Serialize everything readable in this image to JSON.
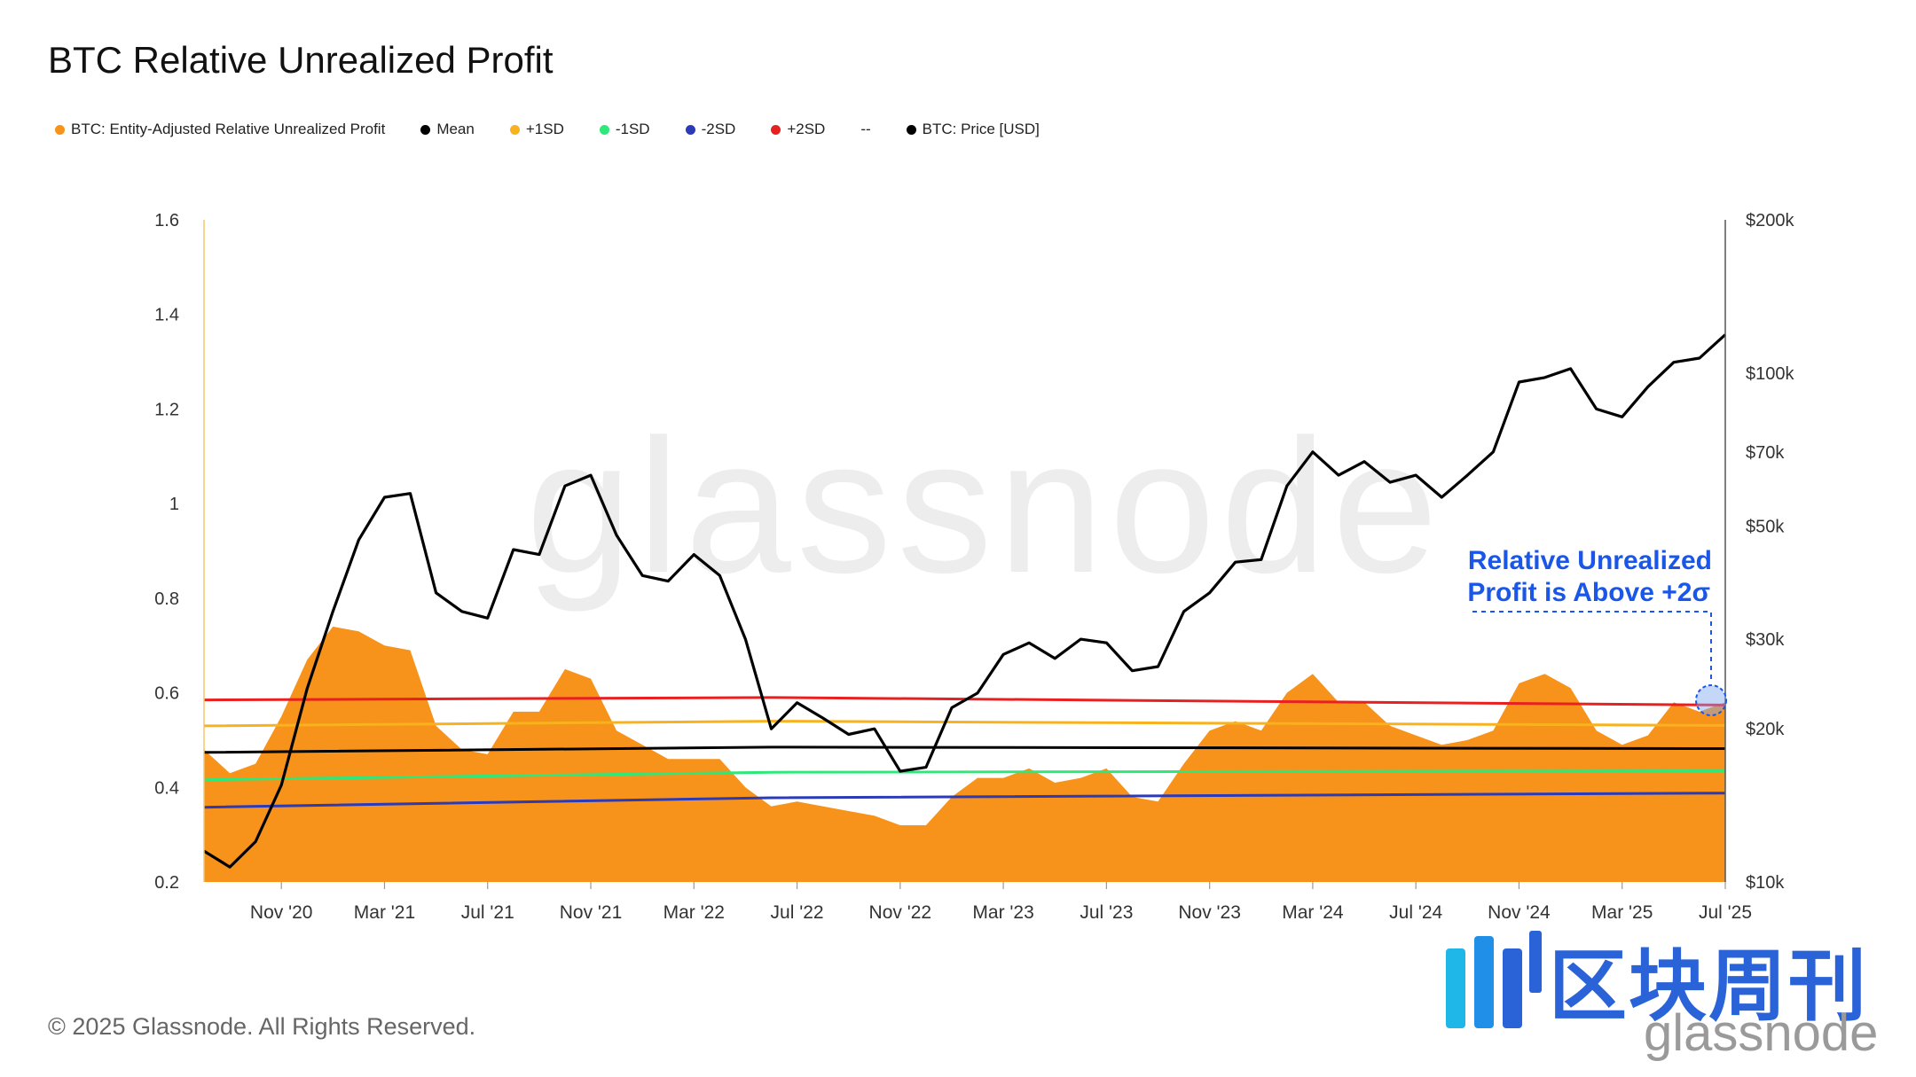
{
  "title": "BTC Relative Unrealized Profit",
  "legend": [
    {
      "label": "BTC: Entity-Adjusted Relative Unrealized Profit",
      "color": "#f7931a"
    },
    {
      "label": "Mean",
      "color": "#000000"
    },
    {
      "label": "+1SD",
      "color": "#f7b21e"
    },
    {
      "label": "-1SD",
      "color": "#2ee87a"
    },
    {
      "label": "-2SD",
      "color": "#2b3ab8"
    },
    {
      "label": "+2SD",
      "color": "#e82020"
    },
    {
      "label": "--",
      "color": ""
    },
    {
      "label": "BTC: Price [USD]",
      "color": "#000000"
    }
  ],
  "annotation": {
    "line1": "Relative Unrealized",
    "line2": "Profit is Above +2σ",
    "color": "#1a56e8"
  },
  "footer": "© 2025 Glassnode. All Rights Reserved.",
  "watermark": "glassnode",
  "brand": {
    "cn": "区块周刊",
    "en": "glassnode"
  },
  "chart_data": {
    "type": "area",
    "x_ticks": [
      "Nov '20",
      "Mar '21",
      "Jul '21",
      "Nov '21",
      "Mar '22",
      "Jul '22",
      "Nov '22",
      "Mar '23",
      "Jul '23",
      "Nov '23",
      "Mar '24",
      "Jul '24",
      "Nov '24",
      "Mar '25",
      "Jul '25"
    ],
    "y_left": {
      "ticks": [
        "1.6",
        "1.4",
        "1.2",
        "1",
        "0.8",
        "0.6",
        "0.4",
        "0.2"
      ],
      "values": [
        1.6,
        1.4,
        1.2,
        1.0,
        0.8,
        0.6,
        0.4,
        0.2
      ],
      "range": [
        0.2,
        1.6
      ]
    },
    "y_right": {
      "scale": "log",
      "ticks": [
        "$200k",
        "$100k",
        "$70k",
        "$50k",
        "$30k",
        "$20k",
        "$10k"
      ],
      "values": [
        200000,
        100000,
        70000,
        50000,
        30000,
        20000,
        10000
      ],
      "range": [
        10000,
        200000
      ]
    },
    "x_range": [
      "2020-08",
      "2025-07"
    ],
    "grid": false,
    "legend_position": "top-left",
    "series": [
      {
        "name": "BTC: Entity-Adjusted Relative Unrealized Profit",
        "kind": "area",
        "color": "#f7931a",
        "points": [
          [
            "2020-08",
            0.48
          ],
          [
            "2020-09",
            0.43
          ],
          [
            "2020-10",
            0.45
          ],
          [
            "2020-11",
            0.55
          ],
          [
            "2020-12",
            0.67
          ],
          [
            "2021-01",
            0.74
          ],
          [
            "2021-02",
            0.73
          ],
          [
            "2021-03",
            0.7
          ],
          [
            "2021-04",
            0.69
          ],
          [
            "2021-05",
            0.53
          ],
          [
            "2021-06",
            0.48
          ],
          [
            "2021-07",
            0.47
          ],
          [
            "2021-08",
            0.56
          ],
          [
            "2021-09",
            0.56
          ],
          [
            "2021-10",
            0.65
          ],
          [
            "2021-11",
            0.63
          ],
          [
            "2021-12",
            0.52
          ],
          [
            "2022-01",
            0.49
          ],
          [
            "2022-02",
            0.46
          ],
          [
            "2022-03",
            0.46
          ],
          [
            "2022-04",
            0.46
          ],
          [
            "2022-05",
            0.4
          ],
          [
            "2022-06",
            0.36
          ],
          [
            "2022-07",
            0.37
          ],
          [
            "2022-08",
            0.36
          ],
          [
            "2022-09",
            0.35
          ],
          [
            "2022-10",
            0.34
          ],
          [
            "2022-11",
            0.32
          ],
          [
            "2022-12",
            0.32
          ],
          [
            "2023-01",
            0.38
          ],
          [
            "2023-02",
            0.42
          ],
          [
            "2023-03",
            0.42
          ],
          [
            "2023-04",
            0.44
          ],
          [
            "2023-05",
            0.41
          ],
          [
            "2023-06",
            0.42
          ],
          [
            "2023-07",
            0.44
          ],
          [
            "2023-08",
            0.38
          ],
          [
            "2023-09",
            0.37
          ],
          [
            "2023-10",
            0.45
          ],
          [
            "2023-11",
            0.52
          ],
          [
            "2023-12",
            0.54
          ],
          [
            "2024-01",
            0.52
          ],
          [
            "2024-02",
            0.6
          ],
          [
            "2024-03",
            0.64
          ],
          [
            "2024-04",
            0.58
          ],
          [
            "2024-05",
            0.58
          ],
          [
            "2024-06",
            0.53
          ],
          [
            "2024-07",
            0.51
          ],
          [
            "2024-08",
            0.49
          ],
          [
            "2024-09",
            0.5
          ],
          [
            "2024-10",
            0.52
          ],
          [
            "2024-11",
            0.62
          ],
          [
            "2024-12",
            0.64
          ],
          [
            "2025-01",
            0.61
          ],
          [
            "2025-02",
            0.52
          ],
          [
            "2025-03",
            0.49
          ],
          [
            "2025-04",
            0.51
          ],
          [
            "2025-05",
            0.58
          ],
          [
            "2025-06",
            0.56
          ],
          [
            "2025-07",
            0.58
          ]
        ]
      },
      {
        "name": "+2SD",
        "kind": "line",
        "color": "#e82020",
        "points": [
          [
            "2020-08",
            0.585
          ],
          [
            "2022-06",
            0.59
          ],
          [
            "2025-07",
            0.574
          ]
        ]
      },
      {
        "name": "+1SD",
        "kind": "line",
        "color": "#f7b21e",
        "points": [
          [
            "2020-08",
            0.53
          ],
          [
            "2022-06",
            0.54
          ],
          [
            "2025-07",
            0.531
          ]
        ]
      },
      {
        "name": "Mean",
        "kind": "line",
        "color": "#000000",
        "points": [
          [
            "2020-08",
            0.474
          ],
          [
            "2022-06",
            0.485
          ],
          [
            "2025-07",
            0.482
          ]
        ]
      },
      {
        "name": "-1SD",
        "kind": "line",
        "color": "#2ee87a",
        "points": [
          [
            "2020-08",
            0.416
          ],
          [
            "2022-06",
            0.432
          ],
          [
            "2025-07",
            0.435
          ]
        ]
      },
      {
        "name": "-2SD",
        "kind": "line",
        "color": "#2b3ab8",
        "points": [
          [
            "2020-08",
            0.358
          ],
          [
            "2022-06",
            0.378
          ],
          [
            "2025-07",
            0.388
          ]
        ]
      },
      {
        "name": "BTC: Price [USD]",
        "kind": "line",
        "axis": "right",
        "color": "#000000",
        "points": [
          [
            "2020-08",
            11500
          ],
          [
            "2020-09",
            10700
          ],
          [
            "2020-10",
            12000
          ],
          [
            "2020-11",
            15500
          ],
          [
            "2020-12",
            24000
          ],
          [
            "2021-01",
            34000
          ],
          [
            "2021-02",
            47000
          ],
          [
            "2021-03",
            57000
          ],
          [
            "2021-04",
            58000
          ],
          [
            "2021-05",
            37000
          ],
          [
            "2021-06",
            34000
          ],
          [
            "2021-07",
            33000
          ],
          [
            "2021-08",
            45000
          ],
          [
            "2021-09",
            44000
          ],
          [
            "2021-10",
            60000
          ],
          [
            "2021-11",
            63000
          ],
          [
            "2021-12",
            48000
          ],
          [
            "2022-01",
            40000
          ],
          [
            "2022-02",
            39000
          ],
          [
            "2022-03",
            44000
          ],
          [
            "2022-04",
            40000
          ],
          [
            "2022-05",
            30000
          ],
          [
            "2022-06",
            20000
          ],
          [
            "2022-07",
            22500
          ],
          [
            "2022-08",
            21000
          ],
          [
            "2022-09",
            19500
          ],
          [
            "2022-10",
            20000
          ],
          [
            "2022-11",
            16500
          ],
          [
            "2022-12",
            16800
          ],
          [
            "2023-01",
            22000
          ],
          [
            "2023-02",
            23500
          ],
          [
            "2023-03",
            28000
          ],
          [
            "2023-04",
            29500
          ],
          [
            "2023-05",
            27500
          ],
          [
            "2023-06",
            30000
          ],
          [
            "2023-07",
            29500
          ],
          [
            "2023-08",
            26000
          ],
          [
            "2023-09",
            26500
          ],
          [
            "2023-10",
            34000
          ],
          [
            "2023-11",
            37000
          ],
          [
            "2023-12",
            42500
          ],
          [
            "2024-01",
            43000
          ],
          [
            "2024-02",
            60000
          ],
          [
            "2024-03",
            70000
          ],
          [
            "2024-04",
            63000
          ],
          [
            "2024-05",
            67000
          ],
          [
            "2024-06",
            61000
          ],
          [
            "2024-07",
            63000
          ],
          [
            "2024-08",
            57000
          ],
          [
            "2024-09",
            63000
          ],
          [
            "2024-10",
            70000
          ],
          [
            "2024-11",
            96000
          ],
          [
            "2024-12",
            98000
          ],
          [
            "2025-01",
            102000
          ],
          [
            "2025-02",
            85000
          ],
          [
            "2025-03",
            82000
          ],
          [
            "2025-04",
            94000
          ],
          [
            "2025-05",
            105000
          ],
          [
            "2025-06",
            107000
          ],
          [
            "2025-07",
            119000
          ]
        ]
      }
    ]
  }
}
